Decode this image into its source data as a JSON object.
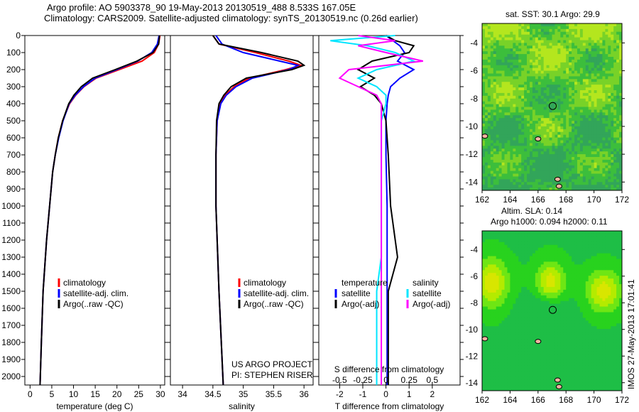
{
  "title_line1": "Argo profile: AO 5903378_90 19-May-2013 20130519_488 8.533S 167.05E",
  "title_line2": "Climatology: CARS2009. Satellite-adjusted climatology: synTS_20130519.nc (0.26d earlier)",
  "colors": {
    "climatology": "#ff0000",
    "satellite": "#0000ff",
    "argo": "#000000",
    "sal_satellite": "#00e5ff",
    "sal_argo": "#ff00ff"
  },
  "chart_data": [
    {
      "type": "line",
      "name": "temperature",
      "xlabel": "temperature (deg C)",
      "ylabel": "",
      "xlim": [
        -1.2,
        31
      ],
      "ylim": [
        2050,
        0
      ],
      "xticks": [
        0,
        5,
        10,
        15,
        20,
        25,
        30
      ],
      "yticks": [
        0,
        100,
        200,
        300,
        400,
        500,
        600,
        700,
        800,
        900,
        1000,
        1100,
        1200,
        1300,
        1400,
        1500,
        1600,
        1700,
        1800,
        1900,
        2000
      ],
      "legend": [
        "climatology",
        "satellite-adj. clim.",
        "Argo(..raw -QC)"
      ],
      "depth": [
        0,
        50,
        100,
        150,
        200,
        250,
        300,
        350,
        400,
        500,
        600,
        700,
        800,
        1000,
        1200,
        1500,
        1800,
        2050
      ],
      "series": [
        {
          "name": "climatology",
          "values": [
            29.9,
            29.6,
            28.6,
            25.8,
            20.5,
            15.2,
            12.4,
            10.5,
            9.1,
            7.5,
            6.5,
            5.8,
            5.2,
            4.5,
            3.8,
            3.0,
            2.6,
            2.3
          ]
        },
        {
          "name": "satellite-adj. clim.",
          "values": [
            29.7,
            29.3,
            28.0,
            24.8,
            20.0,
            15.0,
            12.3,
            10.4,
            9.0,
            7.6,
            6.6,
            5.8,
            5.2,
            4.5,
            3.8,
            3.0,
            2.6,
            2.3
          ]
        },
        {
          "name": "Argo(..raw -QC)",
          "values": [
            29.8,
            29.6,
            28.3,
            24.6,
            19.6,
            14.4,
            11.8,
            10.1,
            8.9,
            7.5,
            6.5,
            5.8,
            5.2,
            4.5,
            3.8,
            3.0,
            2.6,
            2.3
          ]
        }
      ]
    },
    {
      "type": "line",
      "name": "salinity",
      "xlabel": "salinity",
      "xlim": [
        33.8,
        36.15
      ],
      "ylim": [
        2050,
        0
      ],
      "xticks": [
        34,
        34.5,
        35,
        35.5,
        36
      ],
      "legend": [
        "climatology",
        "satellite-adj. clim.",
        "Argo(..raw -QC)"
      ],
      "annotation": [
        "US ARGO PROJECT",
        "PI: STEPHEN RISER"
      ],
      "depth": [
        0,
        50,
        100,
        150,
        175,
        200,
        250,
        300,
        350,
        400,
        500,
        700,
        1000,
        1500,
        2050
      ],
      "series": [
        {
          "name": "climatology",
          "values": [
            34.5,
            34.6,
            35.2,
            35.75,
            35.95,
            35.7,
            35.1,
            34.85,
            34.7,
            34.62,
            34.57,
            34.55,
            34.55,
            34.6,
            34.67
          ]
        },
        {
          "name": "satellite-adj. clim.",
          "values": [
            34.55,
            34.65,
            35.0,
            35.6,
            35.9,
            35.75,
            35.15,
            34.88,
            34.72,
            34.63,
            34.57,
            34.55,
            34.55,
            34.6,
            34.67
          ]
        },
        {
          "name": "Argo(..raw -QC)",
          "values": [
            34.5,
            34.6,
            35.3,
            35.9,
            36.0,
            35.8,
            35.05,
            34.8,
            34.68,
            34.6,
            34.56,
            34.55,
            34.55,
            34.6,
            34.67
          ]
        }
      ]
    },
    {
      "type": "line",
      "name": "difference",
      "xlabel": "T difference from climatology",
      "x2label": "S difference from climatology",
      "xlim": [
        -2.9,
        3.2
      ],
      "ylim": [
        2050,
        0
      ],
      "xticks": [
        -2,
        -1,
        0,
        1,
        2
      ],
      "x2ticks": [
        "-0.5",
        "-0.25",
        "0",
        "0.25",
        "0.5"
      ],
      "legend_t": {
        "title": "temperature",
        "items": [
          "satellite",
          "Argo(-adj)"
        ]
      },
      "legend_s": {
        "title": "salinity",
        "items": [
          "satellite",
          "Argo(-adj)"
        ]
      },
      "depth": [
        0,
        30,
        60,
        100,
        150,
        200,
        250,
        300,
        350,
        400,
        500,
        700,
        1000,
        1300,
        1500,
        2050
      ],
      "series": [
        {
          "name": "T satellite",
          "values": [
            0,
            0.3,
            0.6,
            0.8,
            0.5,
            1.2,
            0.6,
            0.2,
            0.1,
            0.05,
            0,
            0,
            0.05,
            0.05,
            0.05,
            0.05
          ]
        },
        {
          "name": "T Argo(-adj)",
          "values": [
            0,
            0.4,
            1.2,
            1.0,
            -0.6,
            -1.2,
            -0.5,
            -1.1,
            -0.5,
            -0.2,
            0,
            0.1,
            0.2,
            0.5,
            0.1,
            0.1
          ]
        },
        {
          "name": "S satellite",
          "values": [
            0.1,
            -0.6,
            -0.2,
            0.1,
            0.3,
            -0.1,
            -0.3,
            -0.1,
            0,
            0,
            -0.05,
            -0.05,
            -0.05,
            -0.05,
            -0.1,
            -0.1
          ]
        },
        {
          "name": "S Argo(-adj)",
          "values": [
            -0.3,
            0.1,
            -0.3,
            0.0,
            0.4,
            -0.4,
            -0.5,
            -0.3,
            -0.1,
            -0.05,
            -0.05,
            -0.05,
            -0.05,
            -0.05,
            -0.05,
            -0.05
          ]
        }
      ]
    }
  ],
  "map_sst": {
    "title": "sat. SST: 30.1 Argo: 29.9",
    "lon_ticks": [
      162,
      164,
      166,
      168,
      170,
      172
    ],
    "lat_ticks": [
      -4,
      -6,
      -8,
      -10,
      -12,
      -14
    ],
    "argo_lon": 167.05,
    "argo_lat": -8.533
  },
  "map_sla": {
    "title1": "Altim. SLA: 0.14",
    "title2": "Argo h1000: 0.094 h2000: 0.11",
    "lon_ticks": [
      162,
      164,
      166,
      168,
      170,
      172
    ],
    "lat_ticks": [
      -4,
      -6,
      -8,
      -10,
      -12,
      -14
    ],
    "argo_lon": 167.05,
    "argo_lat": -8.533
  },
  "footer": "IMOS 27-May-2013 17:01:41"
}
